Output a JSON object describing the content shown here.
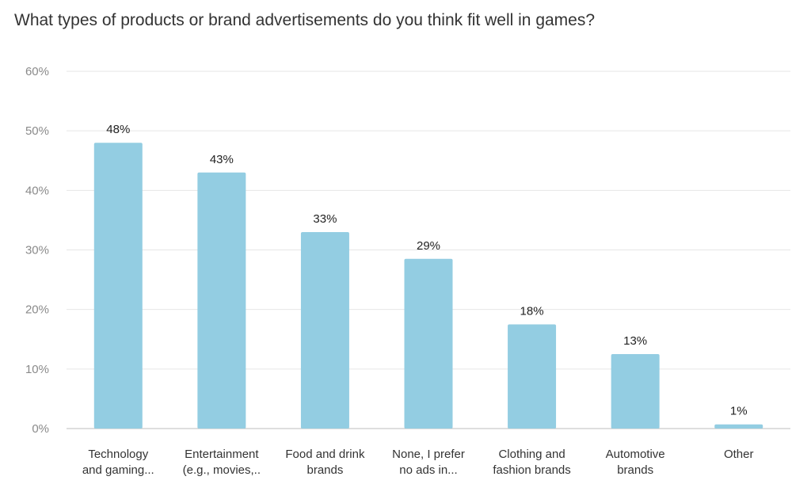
{
  "chart_data": {
    "type": "bar",
    "title": "What types of products or brand advertisements do you think fit well in games?",
    "xlabel": "",
    "ylabel": "",
    "ylim": [
      0,
      60
    ],
    "yticks": [
      0,
      10,
      20,
      30,
      40,
      50,
      60
    ],
    "ytick_labels": [
      "0%",
      "10%",
      "20%",
      "30%",
      "40%",
      "50%",
      "60%"
    ],
    "grid": true,
    "legend": "none",
    "bar_color": "#93CDE2",
    "categories": [
      [
        "Technology",
        "and gaming..."
      ],
      [
        "Entertainment",
        "(e.g., movies,.."
      ],
      [
        "Food and drink",
        "brands"
      ],
      [
        "None, I prefer",
        "no ads in..."
      ],
      [
        "Clothing and",
        "fashion brands"
      ],
      [
        "Automotive",
        "brands"
      ],
      [
        "Other"
      ]
    ],
    "values": [
      48,
      43,
      33,
      28.5,
      17.5,
      12.5,
      0.7
    ],
    "data_labels": [
      "48%",
      "43%",
      "33%",
      "29%",
      "18%",
      "13%",
      "1%"
    ]
  }
}
